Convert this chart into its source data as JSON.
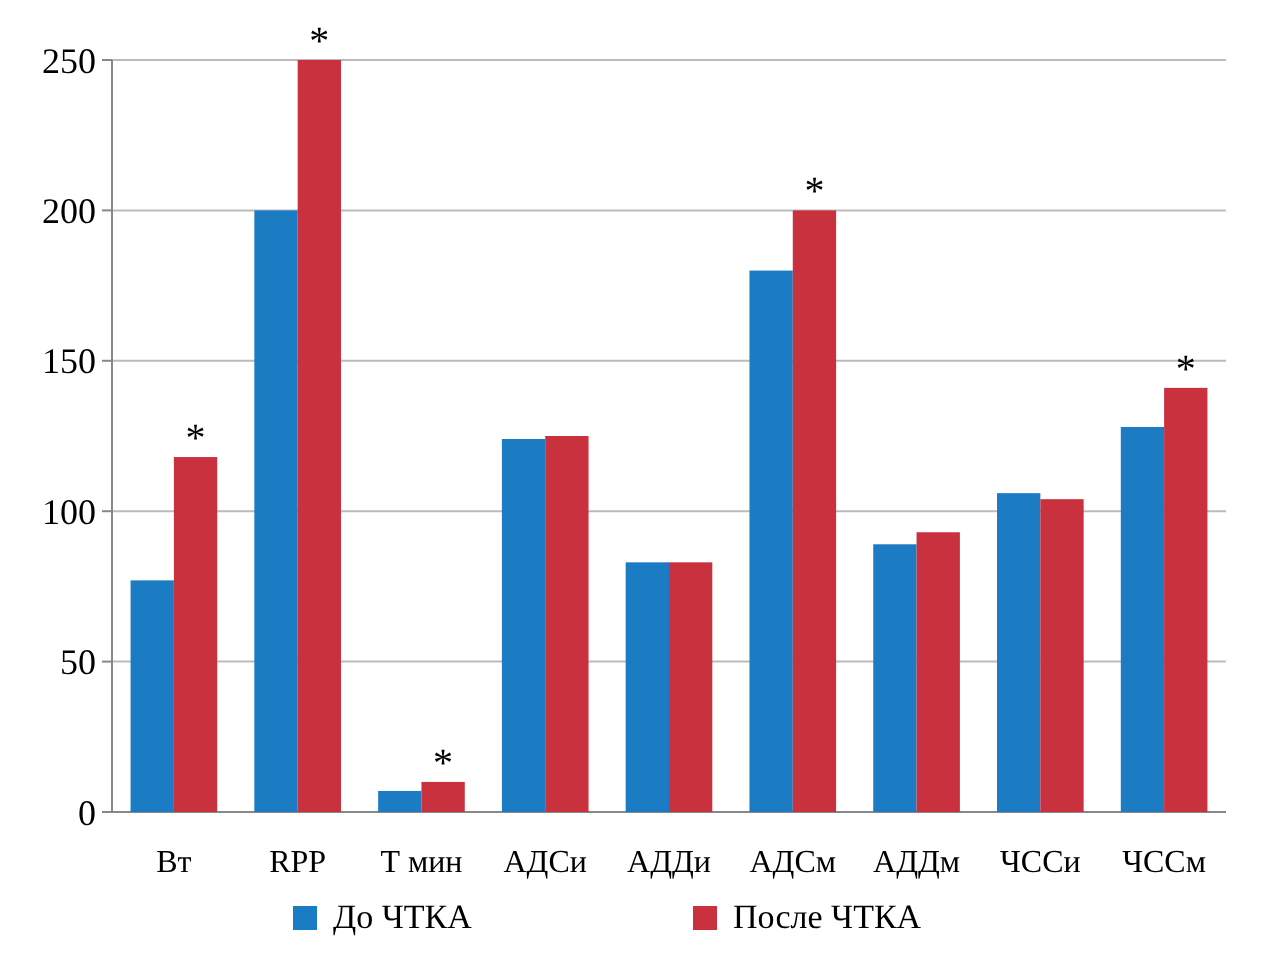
{
  "chart_data": {
    "type": "bar",
    "categories": [
      "Вт",
      "RPP",
      "Т мин",
      "АДСи",
      "АДДи",
      "АДСм",
      "АДДм",
      "ЧССи",
      "ЧССм"
    ],
    "series": [
      {
        "name": "До ЧТКА",
        "color": "#1b7cc4",
        "values": [
          77,
          200,
          7,
          124,
          83,
          180,
          89,
          106,
          128
        ]
      },
      {
        "name": "После ЧТКА",
        "color": "#c9313f",
        "values": [
          118,
          250,
          10,
          125,
          83,
          200,
          93,
          104,
          141
        ]
      }
    ],
    "ylim": [
      0,
      250
    ],
    "yticks": [
      0,
      50,
      100,
      150,
      200,
      250
    ],
    "grid": "y",
    "legend": "bottom",
    "annotations": [
      {
        "text": "*",
        "x": "Вт",
        "y": 118
      },
      {
        "text": "*",
        "x": "RPP",
        "y": 250
      },
      {
        "text": "*",
        "x": "Т мин",
        "y": 10
      },
      {
        "text": "*",
        "x": "АДСм",
        "y": 200
      },
      {
        "text": "*",
        "x": "ЧССм",
        "y": 141
      }
    ]
  }
}
